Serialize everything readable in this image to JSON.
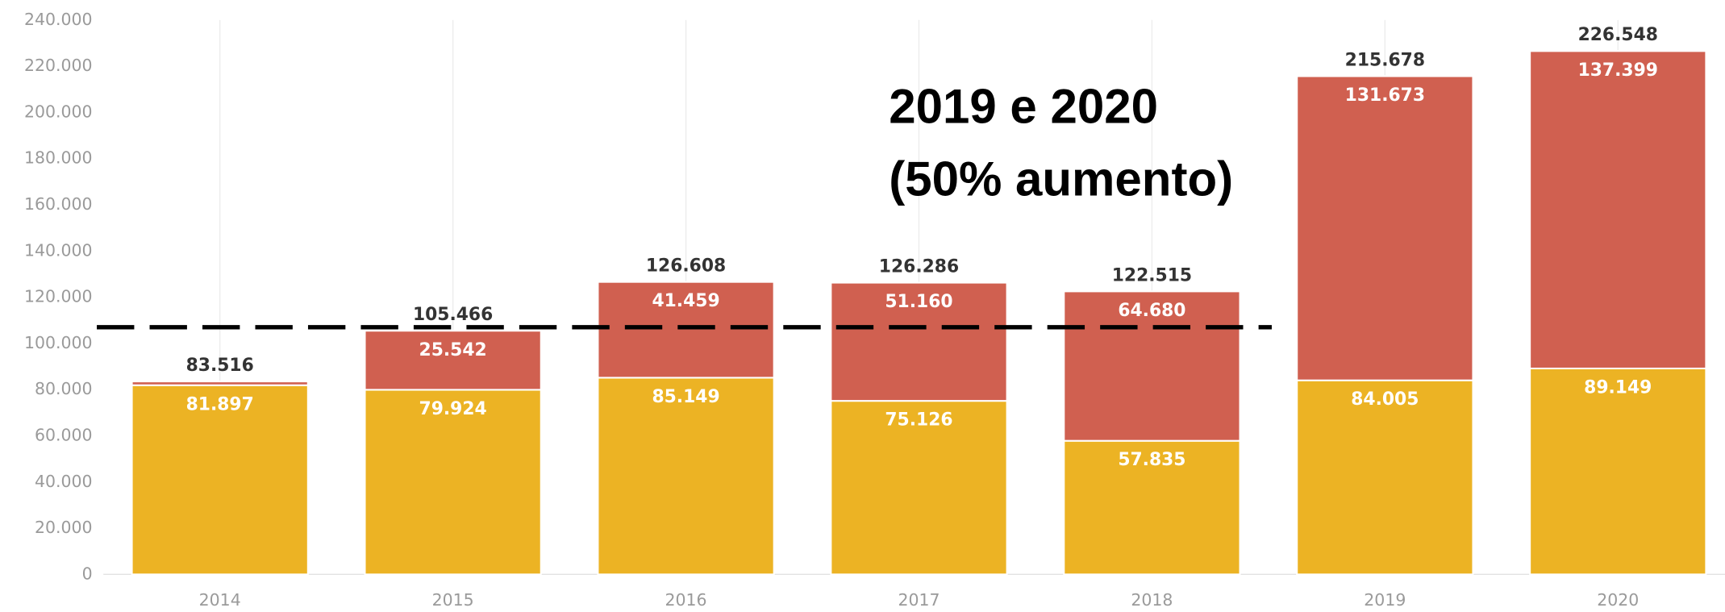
{
  "chart_data": {
    "type": "stacked_bar",
    "categories": [
      "2014",
      "2015",
      "2016",
      "2017",
      "2018",
      "2019",
      "2020"
    ],
    "series": [
      {
        "color": "#ecb324",
        "values": [
          81897,
          79924,
          85149,
          75126,
          57835,
          84005,
          89149
        ],
        "value_labels": [
          "81.897",
          "79.924",
          "85.149",
          "75.126",
          "57.835",
          "84.005",
          "89.149"
        ]
      },
      {
        "color": "#d06050",
        "values": [
          1619,
          25542,
          41459,
          51160,
          64680,
          131673,
          137399
        ],
        "value_labels": [
          null,
          "25.542",
          "41.459",
          "51.160",
          "64.680",
          "131.673",
          "137.399"
        ]
      }
    ],
    "totals": {
      "values": [
        83516,
        105466,
        126608,
        126286,
        122515,
        215678,
        226548
      ],
      "value_labels": [
        "83.516",
        "105.466",
        "126.608",
        "126.286",
        "122.515",
        "215.678",
        "226.548"
      ]
    },
    "ylim": [
      0,
      240000
    ],
    "yticks": [
      0,
      {
        "value": 20000,
        "label": "20.000"
      },
      {
        "value": 40000,
        "label": "40.000"
      },
      {
        "value": 60000,
        "label": "60.000"
      },
      {
        "value": 80000,
        "label": "80.000"
      },
      {
        "value": 100000,
        "label": "100.000"
      },
      {
        "value": 120000,
        "label": "120.000"
      },
      {
        "value": 140000,
        "label": "140.000"
      },
      {
        "value": 160000,
        "label": "160.000"
      },
      {
        "value": 180000,
        "label": "180.000"
      },
      {
        "value": 200000,
        "label": "200.000"
      },
      {
        "value": 220000,
        "label": "220.000"
      },
      {
        "value": 240000,
        "label": "240.000"
      }
    ],
    "annotation": [
      "2019 e 2020",
      "(50% aumento)"
    ],
    "reference_line": {
      "value": 107000,
      "color": "#000000"
    },
    "grid": "x"
  }
}
